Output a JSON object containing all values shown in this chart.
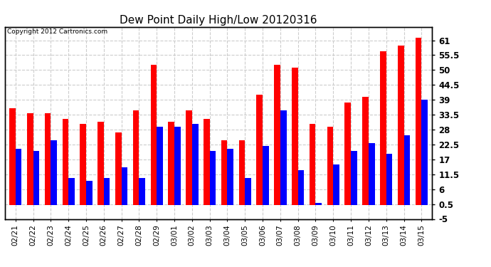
{
  "title": "Dew Point Daily High/Low 20120316",
  "copyright": "Copyright 2012 Cartronics.com",
  "dates": [
    "02/21",
    "02/22",
    "02/23",
    "02/24",
    "02/25",
    "02/26",
    "02/27",
    "02/28",
    "02/29",
    "03/01",
    "03/02",
    "03/03",
    "03/04",
    "03/05",
    "03/06",
    "03/07",
    "03/08",
    "03/09",
    "03/10",
    "03/11",
    "03/12",
    "03/13",
    "03/14",
    "03/15"
  ],
  "high": [
    36,
    34,
    34,
    32,
    30,
    31,
    27,
    35,
    52,
    31,
    35,
    32,
    24,
    24,
    41,
    52,
    51,
    30,
    29,
    38,
    40,
    57,
    59,
    62
  ],
  "low": [
    21,
    20,
    24,
    10,
    9,
    10,
    14,
    10,
    29,
    29,
    30,
    20,
    21,
    10,
    22,
    35,
    13,
    1,
    15,
    20,
    23,
    19,
    26,
    39
  ],
  "high_color": "#ff0000",
  "low_color": "#0000ff",
  "bg_color": "#ffffff",
  "plot_bg_color": "#ffffff",
  "grid_color": "#aaaaaa",
  "ylim": [
    -5,
    66
  ],
  "yticks": [
    -5.0,
    0.5,
    6.0,
    11.5,
    17.0,
    22.5,
    28.0,
    33.5,
    39.0,
    44.5,
    50.0,
    55.5,
    61.0
  ],
  "title_fontsize": 11,
  "bar_width": 0.35,
  "figsize": [
    6.9,
    3.75
  ],
  "dpi": 100
}
